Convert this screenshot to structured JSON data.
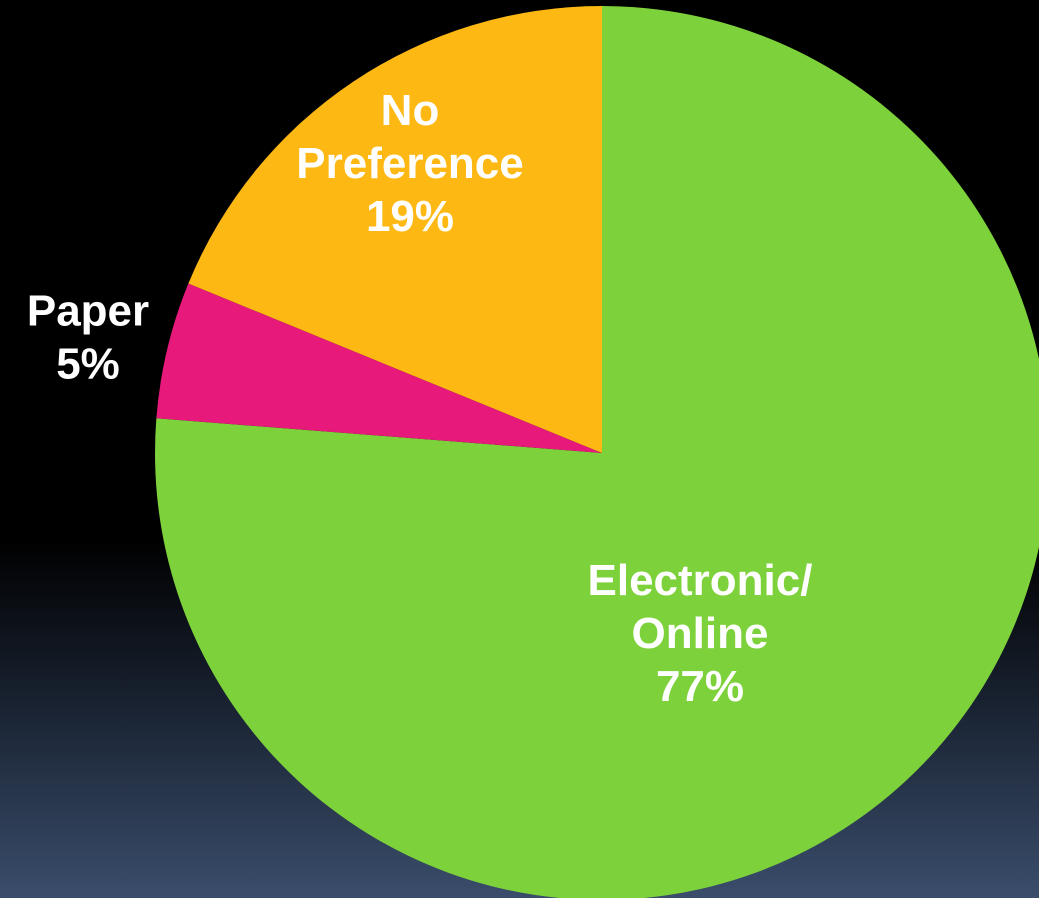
{
  "chart_data": {
    "type": "pie",
    "slices": [
      {
        "name": "Electronic/ Online",
        "lines": [
          "Electronic/",
          "Online"
        ],
        "value": 77,
        "label": "77%",
        "color": "#7dd13b"
      },
      {
        "name": "Paper",
        "lines": [
          "Paper"
        ],
        "value": 5,
        "label": "5%",
        "color": "#e7197b"
      },
      {
        "name": "No Preference",
        "lines": [
          "No",
          "Preference"
        ],
        "value": 19,
        "label": "19%",
        "color": "#fdb813"
      }
    ],
    "label_color_inside": "#ffffff",
    "label_color_outside": "#ffffff",
    "start_angle": "12 o'clock",
    "direction": "clockwise"
  }
}
